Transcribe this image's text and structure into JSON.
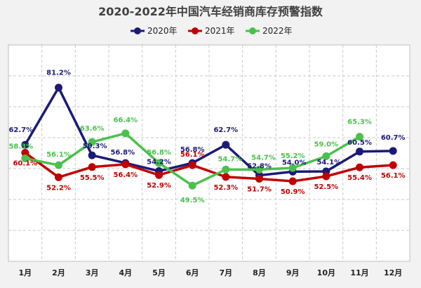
{
  "chart_data": {
    "type": "line",
    "title": "2020-2022年中国汽车经销商库存预警指数",
    "categories": [
      "1月",
      "2月",
      "3月",
      "4月",
      "5月",
      "6月",
      "7月",
      "8月",
      "9月",
      "10月",
      "11月",
      "12月"
    ],
    "ylim": [
      0,
      100
    ],
    "grid": true,
    "legend_position": "top",
    "series": [
      {
        "name": "2020年",
        "color": "#1a1a7a",
        "values": [
          62.7,
          81.2,
          59.3,
          56.8,
          54.2,
          56.8,
          62.7,
          52.8,
          54.0,
          54.1,
          60.5,
          60.7
        ],
        "labels": [
          "62.7%",
          "81.2%",
          "59.3%",
          "56.8%",
          "54.2%",
          "56.8%",
          "62.7%",
          "52.8%",
          "54.0%",
          "54.1%",
          "60.5%",
          "60.7%"
        ]
      },
      {
        "name": "2021年",
        "color": "#c00000",
        "values": [
          60.1,
          52.2,
          55.5,
          56.4,
          52.9,
          56.1,
          52.3,
          51.7,
          50.9,
          52.5,
          55.4,
          56.1
        ],
        "labels": [
          "60.1%",
          "52.2%",
          "55.5%",
          "56.4%",
          "52.9%",
          "56.1%",
          "52.3%",
          "51.7%",
          "50.9%",
          "52.5%",
          "55.4%",
          "56.1%"
        ]
      },
      {
        "name": "2022年",
        "color": "#4cc04c",
        "values": [
          58.3,
          56.1,
          63.6,
          66.4,
          56.8,
          49.5,
          54.7,
          54.7,
          55.2,
          59.0,
          65.3,
          null
        ],
        "labels": [
          "58.3%",
          "56.1%",
          "63.6%",
          "66.4%",
          "56.8%",
          "49.5%",
          "54.7%",
          "54.7%",
          "55.2%",
          "59.0%",
          "65.3%",
          null
        ]
      }
    ]
  }
}
